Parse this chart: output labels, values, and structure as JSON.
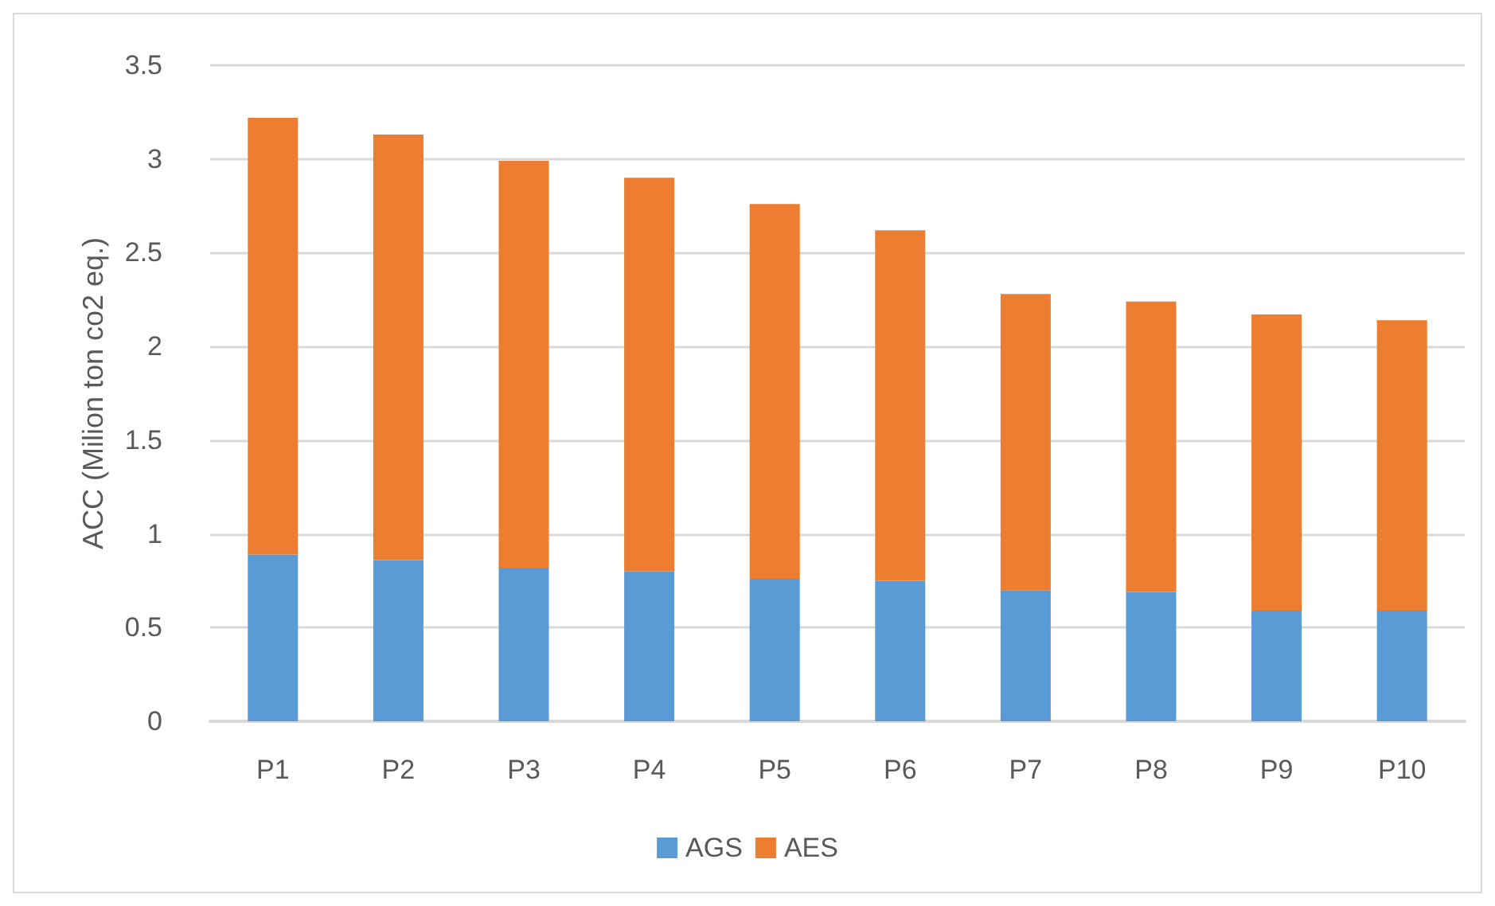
{
  "chart_data": {
    "type": "bar",
    "stacked": true,
    "ylabel": "ACC (Milion ton co2 eq.)",
    "categories": [
      "P1",
      "P2",
      "P3",
      "P4",
      "P5",
      "P6",
      "P7",
      "P8",
      "P9",
      "P10"
    ],
    "series": [
      {
        "name": "AGS",
        "color": "#5b9bd5",
        "values": [
          0.89,
          0.86,
          0.82,
          0.8,
          0.76,
          0.75,
          0.7,
          0.69,
          0.59,
          0.59
        ]
      },
      {
        "name": "AES",
        "color": "#ed7d31",
        "values": [
          2.33,
          2.27,
          2.17,
          2.1,
          2.0,
          1.87,
          1.58,
          1.55,
          1.58,
          1.55
        ]
      }
    ],
    "ylim": [
      0,
      3.5
    ],
    "yticks": [
      0,
      0.5,
      1,
      1.5,
      2,
      2.5,
      3,
      3.5
    ],
    "grid": "y",
    "legend": "bottom"
  }
}
